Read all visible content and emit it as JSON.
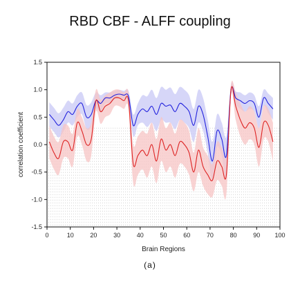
{
  "chart_data": {
    "type": "line",
    "title": "RBD CBF - ALFF coupling",
    "xlabel": "Brain Regions",
    "ylabel": "correlation coefficient",
    "caption": "(a)",
    "xlim": [
      0,
      100
    ],
    "ylim": [
      -1.5,
      1.5
    ],
    "xticks": [
      0,
      10,
      20,
      30,
      40,
      50,
      60,
      70,
      80,
      90,
      100
    ],
    "yticks": [
      -1.5,
      -1.0,
      -0.5,
      0.0,
      0.5,
      1.0,
      1.5
    ],
    "grid": false,
    "colors": {
      "blue": "#2222dd",
      "blue_band": "#c8c8f5",
      "red": "#dd2222",
      "red_band": "#f7c4c4",
      "dots": "#bbbbbb"
    },
    "series": [
      {
        "color": "blue",
        "x": [
          1,
          3,
          5,
          7,
          9,
          11,
          13,
          15,
          17,
          19,
          21,
          23,
          25,
          27,
          29,
          31,
          33,
          35,
          37,
          39,
          41,
          43,
          45,
          47,
          49,
          51,
          53,
          55,
          57,
          59,
          61,
          63,
          65,
          67,
          69,
          71,
          73,
          75,
          77,
          79,
          81,
          83,
          85,
          87,
          89,
          91,
          93,
          95,
          97
        ],
        "y": [
          0.55,
          0.45,
          0.35,
          0.45,
          0.6,
          0.55,
          0.7,
          0.75,
          0.5,
          0.55,
          0.8,
          0.75,
          0.85,
          0.85,
          0.9,
          0.92,
          0.9,
          0.88,
          0.35,
          0.55,
          0.65,
          0.6,
          0.7,
          0.55,
          0.75,
          0.7,
          0.72,
          0.6,
          0.75,
          0.7,
          0.6,
          0.35,
          0.7,
          0.55,
          0.15,
          -0.3,
          0.25,
          0.1,
          -0.2,
          1.0,
          0.85,
          0.8,
          0.75,
          0.8,
          0.75,
          0.5,
          0.85,
          0.75,
          0.65
        ],
        "band": [
          0.22,
          0.22,
          0.22,
          0.22,
          0.2,
          0.2,
          0.2,
          0.2,
          0.22,
          0.22,
          0.15,
          0.15,
          0.1,
          0.1,
          0.08,
          0.08,
          0.08,
          0.1,
          0.2,
          0.2,
          0.25,
          0.28,
          0.3,
          0.3,
          0.3,
          0.3,
          0.32,
          0.32,
          0.3,
          0.3,
          0.3,
          0.3,
          0.3,
          0.3,
          0.3,
          0.35,
          0.3,
          0.3,
          0.35,
          0.1,
          0.12,
          0.15,
          0.15,
          0.15,
          0.15,
          0.2,
          0.15,
          0.18,
          0.2
        ]
      },
      {
        "color": "red",
        "x": [
          1,
          3,
          5,
          7,
          9,
          11,
          13,
          15,
          17,
          19,
          21,
          23,
          25,
          27,
          29,
          31,
          33,
          35,
          37,
          39,
          41,
          43,
          45,
          47,
          49,
          51,
          53,
          55,
          57,
          59,
          61,
          63,
          65,
          67,
          69,
          71,
          73,
          75,
          77,
          79,
          81,
          83,
          85,
          87,
          89,
          91,
          93,
          95,
          97
        ],
        "y": [
          0.05,
          -0.15,
          -0.25,
          0.05,
          0.05,
          -0.1,
          0.4,
          0.25,
          0.0,
          0.1,
          0.8,
          0.6,
          0.7,
          0.75,
          0.85,
          0.85,
          0.8,
          0.8,
          -0.35,
          -0.2,
          -0.1,
          -0.2,
          0.0,
          -0.3,
          0.1,
          -0.1,
          0.0,
          -0.2,
          0.05,
          0.0,
          -0.15,
          -0.5,
          -0.1,
          -0.4,
          -0.55,
          -0.65,
          -0.3,
          -0.4,
          -0.55,
          1.0,
          0.7,
          0.45,
          0.3,
          0.4,
          0.3,
          -0.05,
          0.4,
          0.35,
          0.05
        ],
        "band": [
          0.3,
          0.3,
          0.3,
          0.3,
          0.3,
          0.3,
          0.25,
          0.25,
          0.3,
          0.3,
          0.2,
          0.22,
          0.2,
          0.2,
          0.15,
          0.15,
          0.15,
          0.15,
          0.35,
          0.35,
          0.35,
          0.4,
          0.4,
          0.4,
          0.4,
          0.4,
          0.4,
          0.4,
          0.4,
          0.4,
          0.4,
          0.35,
          0.4,
          0.35,
          0.35,
          0.3,
          0.35,
          0.35,
          0.35,
          0.1,
          0.25,
          0.3,
          0.3,
          0.3,
          0.3,
          0.35,
          0.3,
          0.3,
          0.35
        ]
      }
    ]
  }
}
